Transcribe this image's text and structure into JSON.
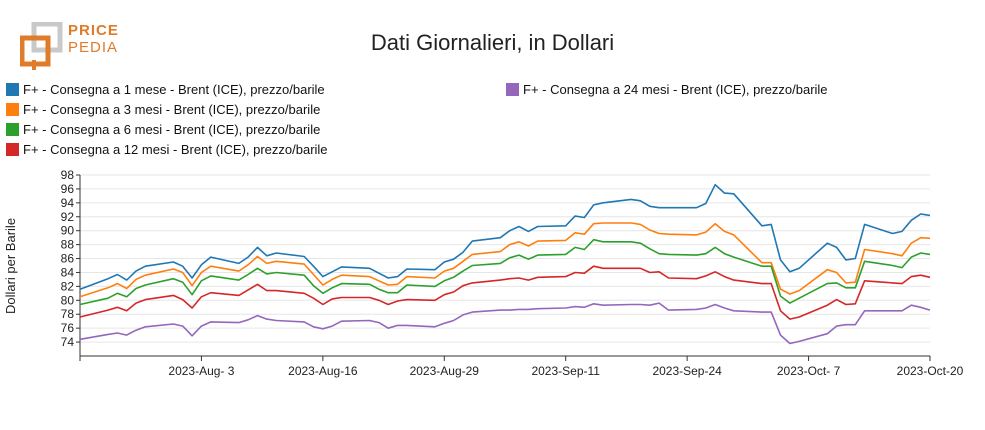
{
  "logo": {
    "line1": "PRICE",
    "line2": "PEDIA",
    "color": "#e07b2a"
  },
  "chart_data": {
    "type": "line",
    "title": "Dati Giornalieri, in Dollari",
    "ylabel": "Dollari per Barile",
    "xlabel": "",
    "ylim": [
      72,
      98
    ],
    "yticks": [
      74,
      76,
      78,
      80,
      82,
      84,
      86,
      88,
      90,
      92,
      94,
      96,
      98
    ],
    "xlim": [
      "2023-07-21",
      "2023-10-20"
    ],
    "xticks": [
      "2023-Aug- 3",
      "2023-Aug-16",
      "2023-Aug-29",
      "2023-Sep-11",
      "2023-Sep-24",
      "2023-Oct- 7",
      "2023-Oct-20"
    ],
    "xtick_dates": [
      "2023-08-03",
      "2023-08-16",
      "2023-08-29",
      "2023-09-11",
      "2023-09-24",
      "2023-10-07",
      "2023-10-20"
    ],
    "grid": "horizontal",
    "legend_position": "top-left",
    "x": [
      "2023-07-21",
      "2023-07-24",
      "2023-07-25",
      "2023-07-26",
      "2023-07-27",
      "2023-07-28",
      "2023-07-31",
      "2023-08-01",
      "2023-08-02",
      "2023-08-03",
      "2023-08-04",
      "2023-08-07",
      "2023-08-08",
      "2023-08-09",
      "2023-08-10",
      "2023-08-11",
      "2023-08-14",
      "2023-08-15",
      "2023-08-16",
      "2023-08-17",
      "2023-08-18",
      "2023-08-21",
      "2023-08-22",
      "2023-08-23",
      "2023-08-24",
      "2023-08-25",
      "2023-08-28",
      "2023-08-29",
      "2023-08-30",
      "2023-08-31",
      "2023-09-01",
      "2023-09-04",
      "2023-09-05",
      "2023-09-06",
      "2023-09-07",
      "2023-09-08",
      "2023-09-11",
      "2023-09-12",
      "2023-09-13",
      "2023-09-14",
      "2023-09-15",
      "2023-09-18",
      "2023-09-19",
      "2023-09-20",
      "2023-09-21",
      "2023-09-22",
      "2023-09-25",
      "2023-09-26",
      "2023-09-27",
      "2023-09-28",
      "2023-09-29",
      "2023-10-02",
      "2023-10-03",
      "2023-10-04",
      "2023-10-05",
      "2023-10-06",
      "2023-10-09",
      "2023-10-10",
      "2023-10-11",
      "2023-10-12",
      "2023-10-13",
      "2023-10-16",
      "2023-10-17",
      "2023-10-18",
      "2023-10-19",
      "2023-10-20"
    ],
    "series": [
      {
        "name": "F+ - Consegna a 1 mese - Brent (ICE), prezzo/barile",
        "color": "#1f77b4",
        "values": [
          81.6,
          83.1,
          83.7,
          82.9,
          84.2,
          84.9,
          85.5,
          84.9,
          83.2,
          85.1,
          86.2,
          85.3,
          86.2,
          87.6,
          86.4,
          86.8,
          86.3,
          84.9,
          83.4,
          84.1,
          84.8,
          84.6,
          83.9,
          83.2,
          83.4,
          84.5,
          84.4,
          85.5,
          85.9,
          86.9,
          88.5,
          89.0,
          90.0,
          90.6,
          89.9,
          90.6,
          90.7,
          92.1,
          91.9,
          93.7,
          94.0,
          94.5,
          94.3,
          93.5,
          93.3,
          93.3,
          93.3,
          93.9,
          96.6,
          95.4,
          95.3,
          90.7,
          90.9,
          85.8,
          84.1,
          84.6,
          88.2,
          87.6,
          85.8,
          86.0,
          90.9,
          89.6,
          89.9,
          91.5,
          92.4,
          92.2
        ]
      },
      {
        "name": "F+ - Consegna a 3 mesi - Brent (ICE), prezzo/barile",
        "color": "#ff7f0e",
        "values": [
          80.5,
          81.8,
          82.4,
          81.7,
          83.0,
          83.6,
          84.5,
          84.0,
          82.1,
          84.0,
          84.9,
          84.2,
          85.1,
          86.3,
          85.3,
          85.6,
          85.2,
          83.7,
          82.2,
          83.0,
          83.6,
          83.4,
          82.8,
          82.2,
          82.3,
          83.4,
          83.2,
          84.2,
          84.6,
          85.6,
          86.6,
          87.0,
          88.0,
          88.4,
          87.8,
          88.5,
          88.6,
          89.7,
          89.5,
          91.0,
          91.1,
          91.1,
          90.9,
          90.1,
          89.6,
          89.5,
          89.4,
          89.8,
          91.0,
          89.9,
          89.4,
          85.4,
          85.4,
          81.6,
          80.9,
          81.4,
          84.4,
          84.0,
          82.5,
          82.6,
          87.3,
          86.7,
          86.4,
          88.2,
          89.0,
          88.9
        ]
      },
      {
        "name": "F+ - Consegna a 6 mesi - Brent (ICE), prezzo/barile",
        "color": "#2ca02c",
        "values": [
          79.4,
          80.3,
          81.0,
          80.5,
          81.7,
          82.2,
          83.1,
          82.6,
          80.8,
          82.8,
          83.5,
          82.9,
          83.7,
          84.6,
          83.8,
          84.0,
          83.6,
          82.1,
          81.0,
          81.8,
          82.4,
          82.3,
          81.6,
          81.1,
          81.1,
          82.2,
          82.0,
          82.8,
          83.3,
          84.2,
          85.0,
          85.3,
          86.1,
          86.5,
          85.9,
          86.5,
          86.6,
          87.6,
          87.3,
          88.7,
          88.4,
          88.4,
          88.2,
          87.4,
          86.7,
          86.6,
          86.5,
          86.7,
          87.6,
          86.7,
          86.2,
          84.9,
          84.9,
          80.6,
          79.6,
          80.3,
          82.4,
          82.5,
          81.8,
          81.8,
          85.6,
          85.0,
          84.7,
          86.2,
          86.8,
          86.6
        ]
      },
      {
        "name": "F+ - Consegna a 12 mesi - Brent (ICE), prezzo/barile",
        "color": "#d62728",
        "values": [
          77.6,
          78.6,
          79.0,
          78.5,
          79.6,
          80.1,
          80.7,
          80.1,
          78.9,
          80.5,
          81.1,
          80.7,
          81.5,
          82.3,
          81.4,
          81.4,
          81.0,
          80.3,
          79.4,
          80.2,
          80.4,
          80.4,
          80.0,
          79.4,
          79.9,
          80.1,
          80.0,
          80.8,
          81.2,
          82.1,
          82.5,
          82.9,
          83.1,
          83.2,
          82.9,
          83.3,
          83.4,
          84.0,
          83.9,
          84.9,
          84.6,
          84.6,
          84.6,
          84.0,
          84.1,
          83.2,
          83.1,
          83.5,
          84.1,
          83.4,
          82.9,
          82.4,
          82.4,
          78.5,
          77.3,
          77.6,
          79.3,
          80.1,
          79.4,
          79.5,
          82.8,
          82.5,
          82.4,
          83.4,
          83.6,
          83.3
        ]
      },
      {
        "name": "F+ - Consegna a 24 mesi - Brent (ICE), prezzo/barile",
        "color": "#9467bd",
        "values": [
          74.4,
          75.1,
          75.3,
          75.0,
          75.7,
          76.2,
          76.6,
          76.3,
          74.9,
          76.3,
          76.9,
          76.8,
          77.2,
          77.8,
          77.3,
          77.1,
          76.9,
          76.2,
          75.9,
          76.3,
          77.0,
          77.1,
          76.8,
          76.0,
          76.4,
          76.4,
          76.2,
          76.7,
          77.1,
          77.9,
          78.3,
          78.6,
          78.6,
          78.7,
          78.7,
          78.8,
          78.9,
          79.1,
          79.0,
          79.5,
          79.3,
          79.4,
          79.4,
          79.3,
          79.6,
          78.6,
          78.7,
          78.9,
          79.4,
          78.9,
          78.5,
          78.3,
          78.3,
          75.0,
          73.8,
          74.1,
          75.2,
          76.3,
          76.5,
          76.5,
          78.5,
          78.5,
          78.5,
          79.3,
          79.0,
          78.6
        ]
      }
    ]
  }
}
